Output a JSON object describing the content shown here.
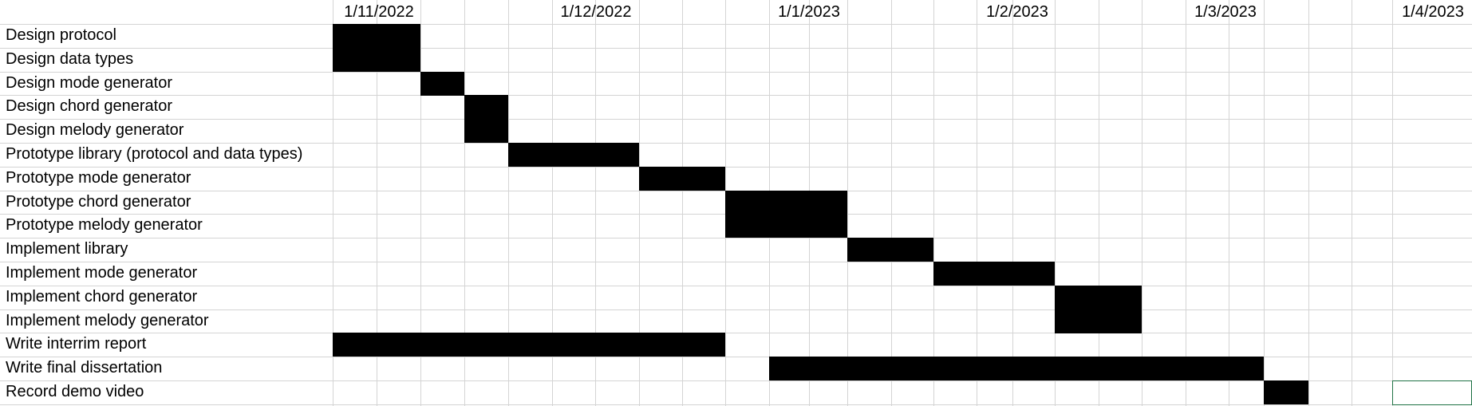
{
  "sheet": {
    "selection_color": "#217346",
    "bar_color": "#000000",
    "grid_color": "#d4d4d4"
  },
  "timeline": {
    "header_dates": [
      "1/11/2022",
      "1/12/2022",
      "1/1/2023",
      "1/2/2023",
      "1/3/2023",
      "1/4/2023"
    ]
  },
  "tasks": [
    {
      "label": "Design protocol",
      "start": 0,
      "end": 2
    },
    {
      "label": "Design data types",
      "start": 0,
      "end": 2
    },
    {
      "label": "Design mode generator",
      "start": 2,
      "end": 3
    },
    {
      "label": "Design chord generator",
      "start": 3,
      "end": 4
    },
    {
      "label": "Design melody generator",
      "start": 3,
      "end": 4
    },
    {
      "label": "Prototype library (protocol and data types)",
      "start": 4,
      "end": 7
    },
    {
      "label": "Prototype mode generator",
      "start": 7,
      "end": 9
    },
    {
      "label": "Prototype chord generator",
      "start": 9,
      "end": 12
    },
    {
      "label": "Prototype melody generator",
      "start": 9,
      "end": 12
    },
    {
      "label": "Implement library",
      "start": 12,
      "end": 14
    },
    {
      "label": "Implement mode generator",
      "start": 14,
      "end": 17
    },
    {
      "label": "Implement chord generator",
      "start": 17,
      "end": 19
    },
    {
      "label": "Implement melody generator",
      "start": 17,
      "end": 19
    },
    {
      "label": "Write interrim report",
      "start": 0,
      "end": 9
    },
    {
      "label": "Write final dissertation",
      "start": 10,
      "end": 22
    },
    {
      "label": "Record demo video",
      "start": 22,
      "end": 23
    }
  ]
}
